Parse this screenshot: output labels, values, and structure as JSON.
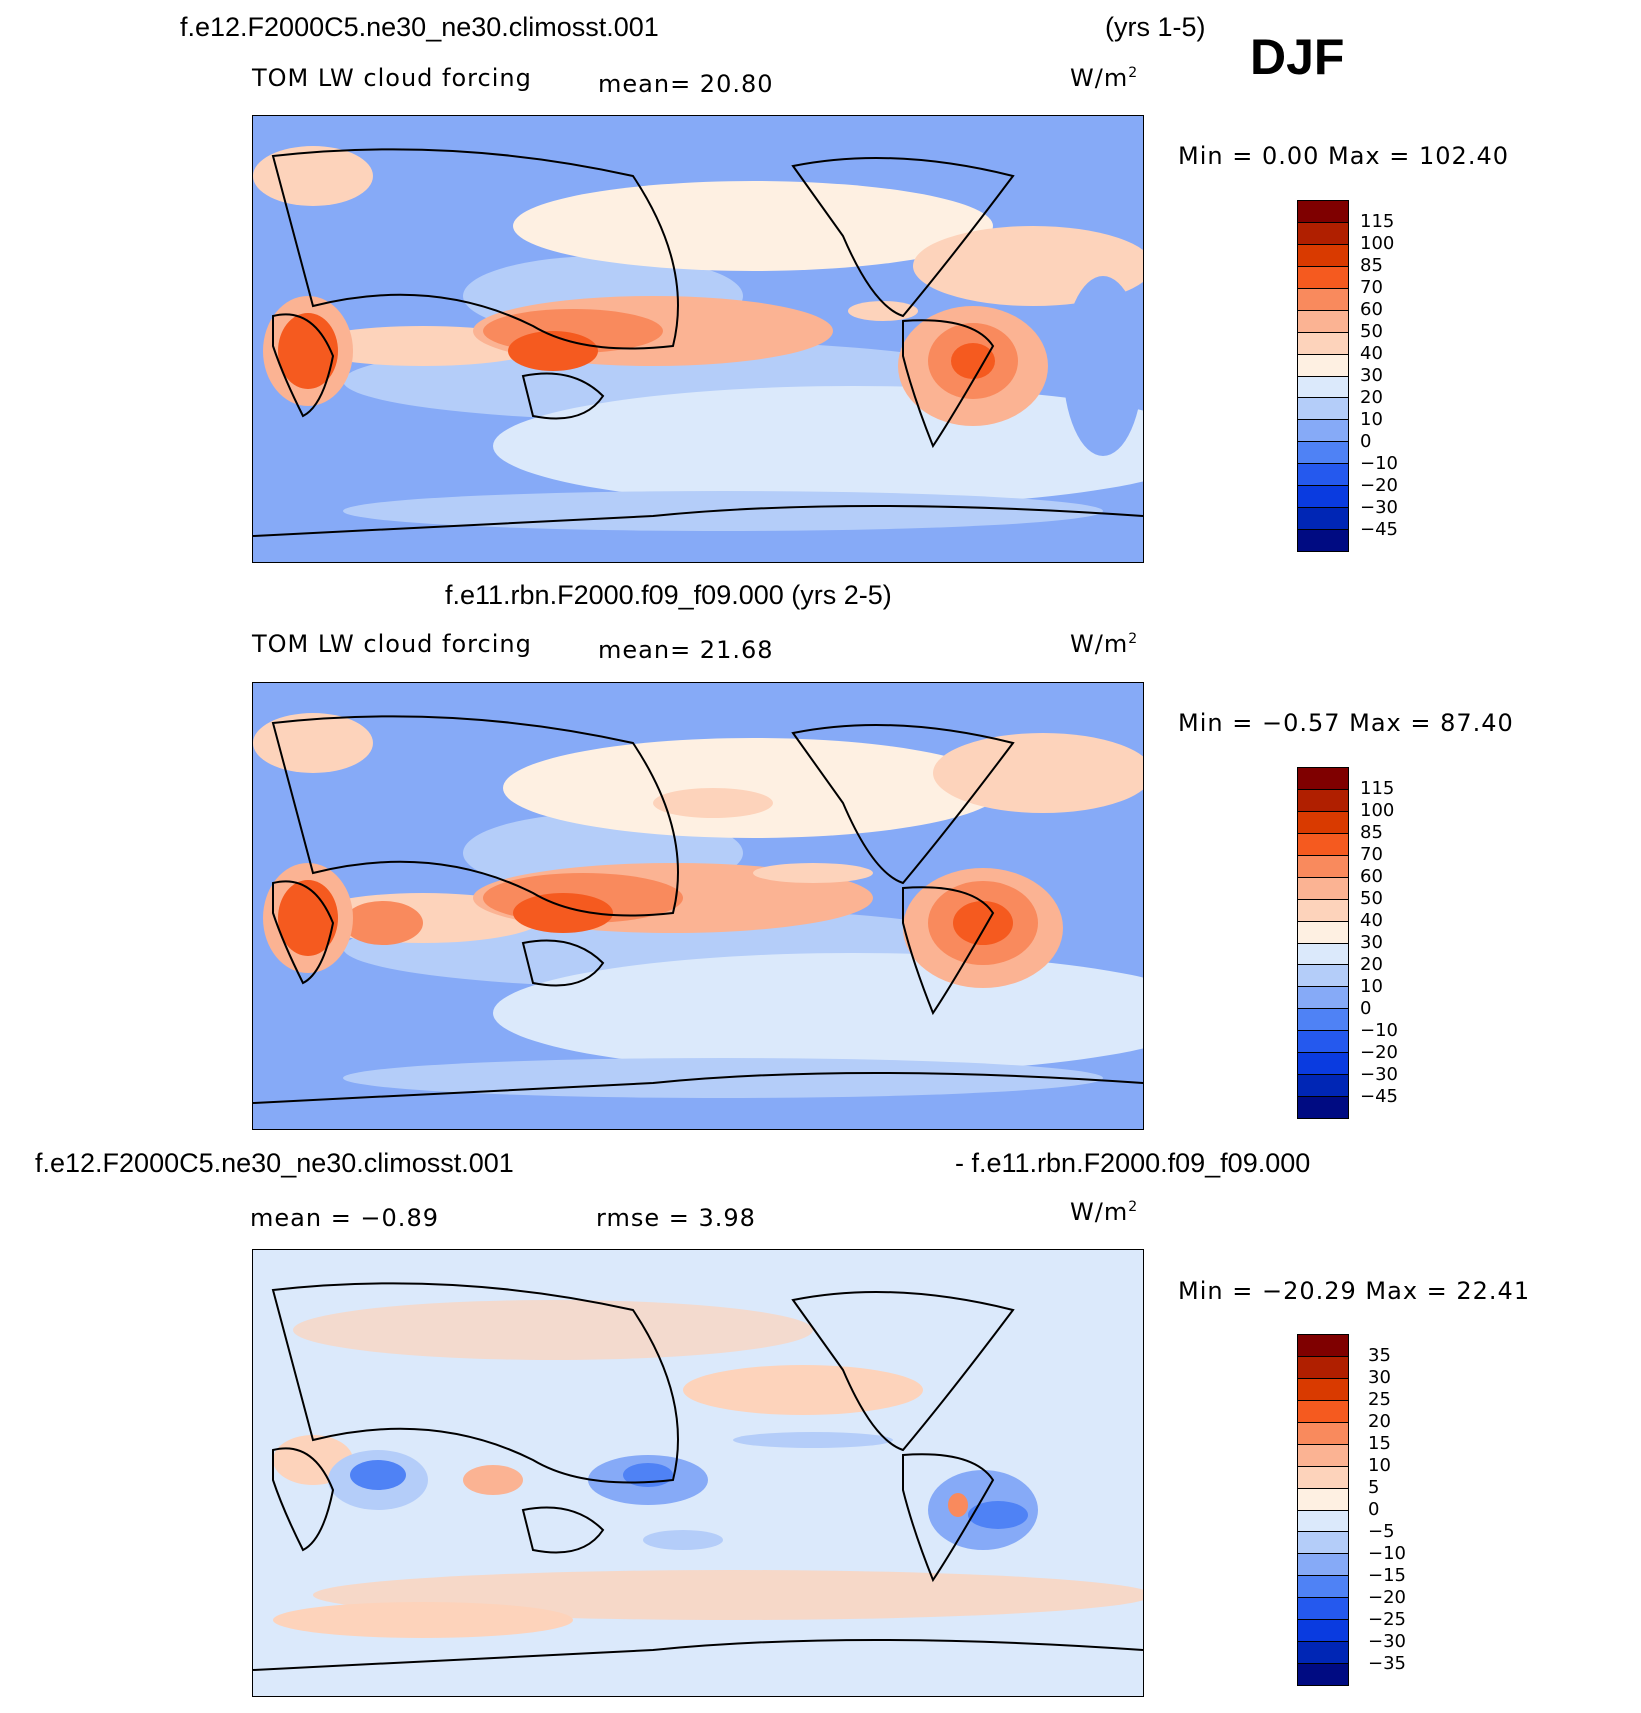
{
  "season": "DJF",
  "panels": [
    {
      "title_left": "f.e12.F2000C5.ne30_ne30.climosst.001",
      "title_right": "(yrs 1-5)",
      "var_label": "TOM LW cloud forcing",
      "stat1": "mean=   20.80",
      "stat2": "",
      "units": "W/m",
      "units_sup": "2",
      "minmax": "Min =    0.00  Max  =  102.40"
    },
    {
      "title_left": "f.e11.rbn.F2000.f09_f09.000 (yrs 2-5)",
      "title_right": "",
      "var_label": "TOM LW cloud forcing",
      "stat1": "mean=   21.68",
      "stat2": "",
      "units": "W/m",
      "units_sup": "2",
      "minmax": "Min =   −0.57  Max  =   87.40"
    },
    {
      "title_left": "f.e12.F2000C5.ne30_ne30.climosst.001",
      "title_right": "- f.e11.rbn.F2000.f09_f09.000",
      "var_label": "",
      "stat1": "mean =   −0.89",
      "stat2": "rmse =     3.98",
      "units": "W/m",
      "units_sup": "2",
      "minmax": "Min = −20.29  Max  =   22.41"
    }
  ],
  "chart_data": [
    {
      "type": "heatmap",
      "title": "f.e12.F2000C5.ne30_ne30.climosst.001 (yrs 1-5)",
      "variable": "TOM LW cloud forcing",
      "units": "W/m2",
      "mean": 20.8,
      "min": 0.0,
      "max": 102.4,
      "colorbar_labels": [
        "115",
        "100",
        "85",
        "70",
        "60",
        "50",
        "40",
        "30",
        "20",
        "10",
        "0",
        "−10",
        "−20",
        "−30",
        "−45"
      ],
      "colorbar_colors": [
        "#7f0000",
        "#b01f00",
        "#d93a00",
        "#f55a1f",
        "#f98a5d",
        "#fbb393",
        "#fdd3bb",
        "#fef0e2",
        "#dbe9fb",
        "#b4cdf9",
        "#86aaf7",
        "#4f82f5",
        "#2559ee",
        "#0a3be0",
        "#0026b5",
        "#000b82"
      ]
    },
    {
      "type": "heatmap",
      "title": "f.e11.rbn.F2000.f09_f09.000 (yrs 2-5)",
      "variable": "TOM LW cloud forcing",
      "units": "W/m2",
      "mean": 21.68,
      "min": -0.57,
      "max": 87.4,
      "colorbar_labels": [
        "115",
        "100",
        "85",
        "70",
        "60",
        "50",
        "40",
        "30",
        "20",
        "10",
        "0",
        "−10",
        "−20",
        "−30",
        "−45"
      ],
      "colorbar_colors": [
        "#7f0000",
        "#b01f00",
        "#d93a00",
        "#f55a1f",
        "#f98a5d",
        "#fbb393",
        "#fdd3bb",
        "#fef0e2",
        "#dbe9fb",
        "#b4cdf9",
        "#86aaf7",
        "#4f82f5",
        "#2559ee",
        "#0a3be0",
        "#0026b5",
        "#000b82"
      ]
    },
    {
      "type": "heatmap",
      "title": "f.e12.F2000C5.ne30_ne30.climosst.001 - f.e11.rbn.F2000.f09_f09.000",
      "units": "W/m2",
      "mean": -0.89,
      "rmse": 3.98,
      "min": -20.29,
      "max": 22.41,
      "colorbar_labels": [
        "35",
        "30",
        "25",
        "20",
        "15",
        "10",
        "5",
        "0",
        "−5",
        "−10",
        "−15",
        "−20",
        "−25",
        "−30",
        "−35"
      ],
      "colorbar_colors": [
        "#7f0000",
        "#b01f00",
        "#d93a00",
        "#f55a1f",
        "#f98a5d",
        "#fbb393",
        "#fdd3bb",
        "#fef0e2",
        "#dbe9fb",
        "#b4cdf9",
        "#86aaf7",
        "#4f82f5",
        "#2559ee",
        "#0a3be0",
        "#0026b5",
        "#000b82"
      ]
    }
  ]
}
